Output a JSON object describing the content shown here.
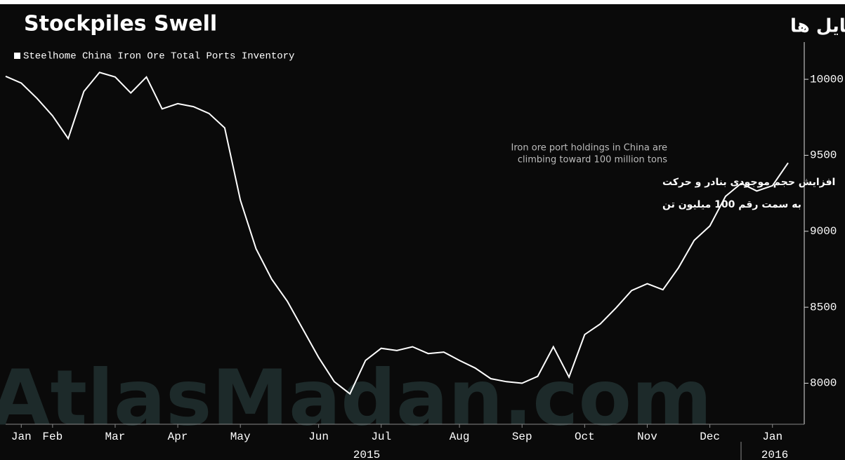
{
  "chart_data": {
    "type": "line",
    "title": "Stockpiles Swell",
    "title_fa": "تورم حجم استوک پایل ها",
    "annotation": [
      "Iron ore port holdings in China are",
      "climbing toward 100 million tons"
    ],
    "annotation_fa": [
      "افزایش حجم موجودی بنادر و حرکت",
      "به سمت رقم 100 میلیون تن"
    ],
    "watermark": "AtlasMadan.com",
    "categories": [
      null,
      "Jan",
      null,
      "Feb",
      null,
      null,
      null,
      "Mar",
      null,
      null,
      null,
      "Apr",
      null,
      null,
      null,
      "May",
      null,
      null,
      null,
      null,
      "Jun",
      null,
      null,
      null,
      "Jul",
      null,
      null,
      null,
      null,
      "Aug",
      null,
      null,
      null,
      "Sep",
      null,
      null,
      null,
      "Oct",
      null,
      null,
      null,
      "Nov",
      null,
      null,
      null,
      "Dec",
      null,
      null,
      null,
      "Jan",
      null
    ],
    "x_group_labels": [
      "2015",
      "2016"
    ],
    "series": [
      {
        "name": "Steelhome China Iron Ore Total Ports Inventory",
        "color": "#ffffff",
        "values": [
          10020,
          9975,
          9875,
          9760,
          9610,
          9920,
          10045,
          10015,
          9910,
          10015,
          9805,
          9840,
          9820,
          9775,
          9680,
          9205,
          8885,
          8685,
          8540,
          8355,
          8170,
          8010,
          7930,
          8150,
          8230,
          8215,
          8240,
          8195,
          8205,
          8150,
          8100,
          8030,
          8010,
          8000,
          8045,
          8240,
          8040,
          8320,
          8390,
          8495,
          8610,
          8655,
          8615,
          8760,
          8940,
          9035,
          9230,
          9315,
          9265,
          9300,
          9450
        ]
      }
    ],
    "ylim": [
      7730,
      10245
    ],
    "yticks": [
      8000,
      8500,
      9000,
      9500,
      10000
    ],
    "grid": false
  }
}
